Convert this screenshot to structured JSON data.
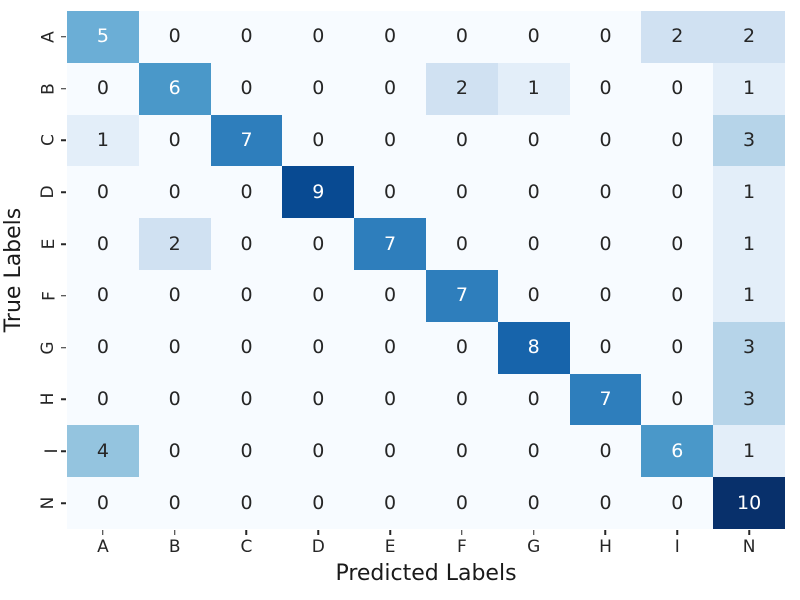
{
  "chart_data": {
    "type": "heatmap",
    "title": "",
    "xlabel": "Predicted Labels",
    "ylabel": "True Labels",
    "x_categories": [
      "A",
      "B",
      "C",
      "D",
      "E",
      "F",
      "G",
      "H",
      "I",
      "N"
    ],
    "y_categories": [
      "A",
      "B",
      "C",
      "D",
      "E",
      "F",
      "G",
      "H",
      "I",
      "N"
    ],
    "values": [
      [
        5,
        0,
        0,
        0,
        0,
        0,
        0,
        0,
        2,
        2
      ],
      [
        0,
        6,
        0,
        0,
        0,
        2,
        1,
        0,
        0,
        1
      ],
      [
        1,
        0,
        7,
        0,
        0,
        0,
        0,
        0,
        0,
        3
      ],
      [
        0,
        0,
        0,
        9,
        0,
        0,
        0,
        0,
        0,
        1
      ],
      [
        0,
        2,
        0,
        0,
        7,
        0,
        0,
        0,
        0,
        1
      ],
      [
        0,
        0,
        0,
        0,
        0,
        7,
        0,
        0,
        0,
        1
      ],
      [
        0,
        0,
        0,
        0,
        0,
        0,
        8,
        0,
        0,
        3
      ],
      [
        0,
        0,
        0,
        0,
        0,
        0,
        0,
        7,
        0,
        3
      ],
      [
        4,
        0,
        0,
        0,
        0,
        0,
        0,
        0,
        6,
        1
      ],
      [
        0,
        0,
        0,
        0,
        0,
        0,
        0,
        0,
        0,
        10
      ]
    ],
    "vmin": 0,
    "vmax": 10,
    "colormap": "Blues",
    "legend": "none",
    "grid": false,
    "annotated": true
  },
  "colors": {
    "background": "#ffffff",
    "scale": [
      "#f7fbff",
      "#e3eef9",
      "#d0e1f2",
      "#b6d4e9",
      "#94c4df",
      "#6baed6",
      "#4a98c9",
      "#2e7ebc",
      "#1764ab",
      "#084a92",
      "#08306b"
    ],
    "annotation_dark": "#262626",
    "annotation_light": "#ffffff",
    "tick_text": "#262626",
    "axis_title_text": "#1a1a1a"
  }
}
